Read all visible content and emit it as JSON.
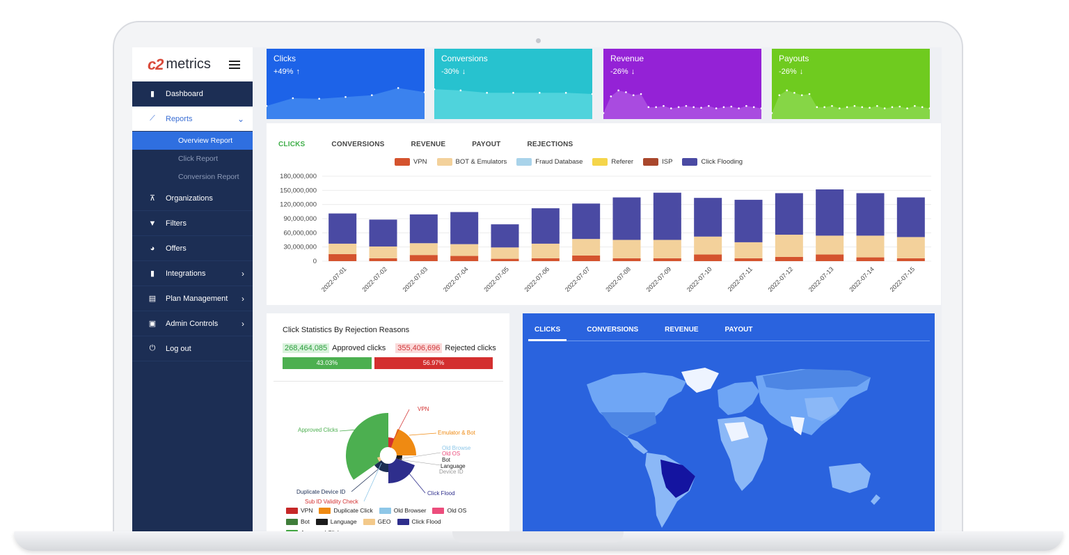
{
  "brand": {
    "logo_mark": "c2",
    "logo_text": "metrics"
  },
  "sidebar": {
    "items": [
      {
        "label": "Dashboard",
        "icon": "bar-chart-icon"
      },
      {
        "label": "Reports",
        "icon": "trend-line-icon"
      },
      {
        "label": "Organizations",
        "icon": "org-chart-icon"
      },
      {
        "label": "Filters",
        "icon": "filter-icon"
      },
      {
        "label": "Offers",
        "icon": "pie-icon"
      },
      {
        "label": "Integrations",
        "icon": "bar-chart-icon"
      },
      {
        "label": "Plan Management",
        "icon": "file-icon"
      },
      {
        "label": "Admin Controls",
        "icon": "briefcase-icon"
      },
      {
        "label": "Log out",
        "icon": "power-icon"
      }
    ],
    "reports_sub": [
      "Overview Report",
      "Click Report",
      "Conversion Report"
    ]
  },
  "cards": [
    {
      "label": "Clicks",
      "delta": "+49%",
      "arrow": "↑",
      "color": "#1d63e8",
      "fill": "#3b82ee",
      "trend": [
        22,
        35,
        34,
        37,
        40,
        52,
        45
      ]
    },
    {
      "label": "Conversions",
      "delta": "-30%",
      "arrow": "↓",
      "color": "#27c2cf",
      "fill": "#4fd3dc",
      "trend": [
        50,
        48,
        44,
        44,
        44,
        44,
        42
      ]
    },
    {
      "label": "Revenue",
      "delta": "-26%",
      "arrow": "↓",
      "color": "#9422d6",
      "fill": "#a94be0",
      "trend": [
        10,
        38,
        48,
        45,
        40,
        42,
        20,
        20,
        22,
        18,
        20,
        22,
        20,
        19,
        22,
        18,
        20,
        21,
        18,
        22,
        20,
        18
      ]
    },
    {
      "label": "Payouts",
      "delta": "-26%",
      "arrow": "↓",
      "color": "#6fcb1f",
      "fill": "#86d646",
      "trend": [
        10,
        40,
        48,
        44,
        40,
        42,
        20,
        20,
        22,
        18,
        20,
        22,
        20,
        19,
        22,
        18,
        20,
        21,
        18,
        22,
        20,
        18
      ]
    }
  ],
  "bar_tabs": [
    "CLICKS",
    "CONVERSIONS",
    "REVENUE",
    "PAYOUT",
    "REJECTIONS"
  ],
  "chart_data": {
    "type": "bar",
    "stacked": true,
    "categories": [
      "2022-07-01",
      "2022-07-02",
      "2022-07-03",
      "2022-07-04",
      "2022-07-05",
      "2022-07-06",
      "2022-07-07",
      "2022-07-08",
      "2022-07-09",
      "2022-07-10",
      "2022-07-11",
      "2022-07-12",
      "2022-07-13",
      "2022-07-14",
      "2022-07-15"
    ],
    "ylim": [
      0,
      180000000
    ],
    "yticks": [
      "180,000,000",
      "150,000,000",
      "120,000,000",
      "90,000,000",
      "60,000,000",
      "30,000,000",
      "0"
    ],
    "series": [
      {
        "name": "VPN",
        "color": "#d4532e",
        "values": [
          15000000,
          6000000,
          13000000,
          11000000,
          5000000,
          6000000,
          12000000,
          6000000,
          6000000,
          14000000,
          6000000,
          9000000,
          14000000,
          8000000,
          6000000
        ]
      },
      {
        "name": "BOT & Emulators",
        "color": "#f3d19b",
        "values": [
          22000000,
          25000000,
          25000000,
          25000000,
          24000000,
          31000000,
          35000000,
          39000000,
          39000000,
          38000000,
          34000000,
          47000000,
          40000000,
          46000000,
          45000000
        ]
      },
      {
        "name": "Fraud Database",
        "color": "#a9d3ea",
        "values": [
          0,
          0,
          0,
          0,
          0,
          0,
          0,
          0,
          0,
          0,
          0,
          0,
          0,
          0,
          0
        ]
      },
      {
        "name": "Referer",
        "color": "#f5d54a",
        "values": [
          0,
          0,
          0,
          0,
          0,
          0,
          0,
          0,
          0,
          0,
          0,
          0,
          0,
          0,
          0
        ]
      },
      {
        "name": "ISP",
        "color": "#a9472c",
        "values": [
          0,
          0,
          0,
          0,
          0,
          0,
          0,
          0,
          0,
          0,
          0,
          0,
          0,
          0,
          0
        ]
      },
      {
        "name": "Click Flooding",
        "color": "#4a4aa3",
        "values": [
          64000000,
          57000000,
          61000000,
          68000000,
          49000000,
          75000000,
          75000000,
          90000000,
          100000000,
          82000000,
          90000000,
          88000000,
          98000000,
          90000000,
          84000000
        ]
      }
    ]
  },
  "rejection": {
    "title": "Click Statistics By Rejection Reasons",
    "approved_count": "268,464,085",
    "approved_label": "Approved clicks",
    "rejected_count": "355,406,696",
    "rejected_label": "Rejected clicks",
    "approved_pct": "43.03%",
    "rejected_pct": "56.97%"
  },
  "pie_labels": {
    "vpn": "VPN",
    "emulator": "Emulator & Bot",
    "approved": "Approved Clicks",
    "old_browse": "Old Browse",
    "old_os": "Old OS",
    "bot": "Bot",
    "language": "Language",
    "device_id": "Device ID",
    "duplicate": "Duplicate Device ID",
    "sub_id": "Sub ID Validity Check",
    "click_flood": "Click Flood"
  },
  "pie_legend": [
    {
      "label": "VPN",
      "color": "#c62828"
    },
    {
      "label": "Duplicate Click",
      "color": "#ef8a12"
    },
    {
      "label": "Old Browser",
      "color": "#8ec7e8"
    },
    {
      "label": "Old OS",
      "color": "#ec4d7c"
    },
    {
      "label": "Bot",
      "color": "#3f7d3a"
    },
    {
      "label": "Language",
      "color": "#1b1b1b"
    },
    {
      "label": "GEO",
      "color": "#f3c98a"
    },
    {
      "label": "Click Flood",
      "color": "#2e2e8c"
    },
    {
      "label": "Approved Clicks",
      "color": "#43a843"
    }
  ],
  "map_tabs": [
    "CLICKS",
    "CONVERSIONS",
    "REVENUE",
    "PAYOUT"
  ]
}
